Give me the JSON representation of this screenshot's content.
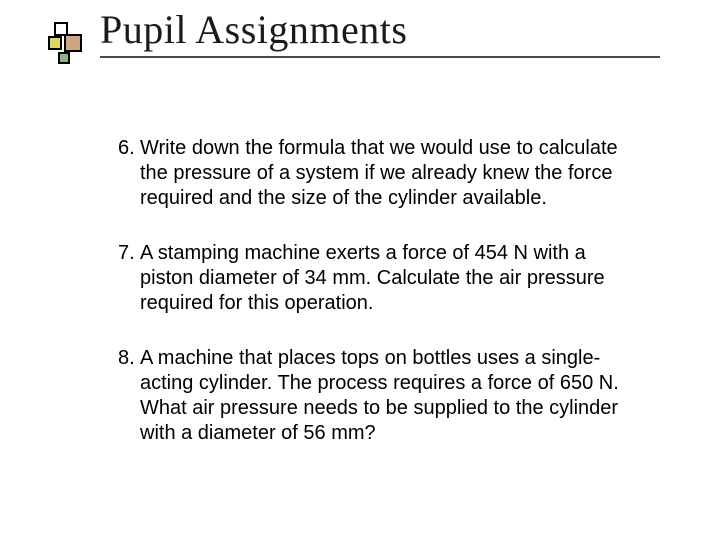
{
  "slide": {
    "title": "Pupil Assignments",
    "title_font": "Times New Roman",
    "title_fontsize": 40,
    "body_font": "Arial",
    "body_fontsize": 20,
    "underline_color": "#4a4a4a",
    "background_color": "#ffffff",
    "bullet_decor_colors": {
      "grey": {
        "border": "#c0c0c0",
        "fill": "transparent"
      },
      "yellow": {
        "border": "#b8b000",
        "fill": "#dcd760"
      },
      "brown": {
        "border": "#a86c4c",
        "fill": "#cda784"
      },
      "green": {
        "border": "#668a5a",
        "fill": "#91b086"
      }
    },
    "assignments": [
      {
        "number": "6.",
        "text": "Write down the formula that we would use to calculate the pressure of a system if we already knew the force required and the size of the cylinder available."
      },
      {
        "number": "7.",
        "text": "A stamping machine exerts a force of 454 N with a piston diameter of 34 mm. Calculate the air pressure required for this operation."
      },
      {
        "number": "8.",
        "text": "A machine that places tops on bottles uses a single-acting cylinder. The process requires a force of 650 N. What air pressure needs to be supplied to the cylinder with a diameter of 56 mm?"
      }
    ]
  }
}
